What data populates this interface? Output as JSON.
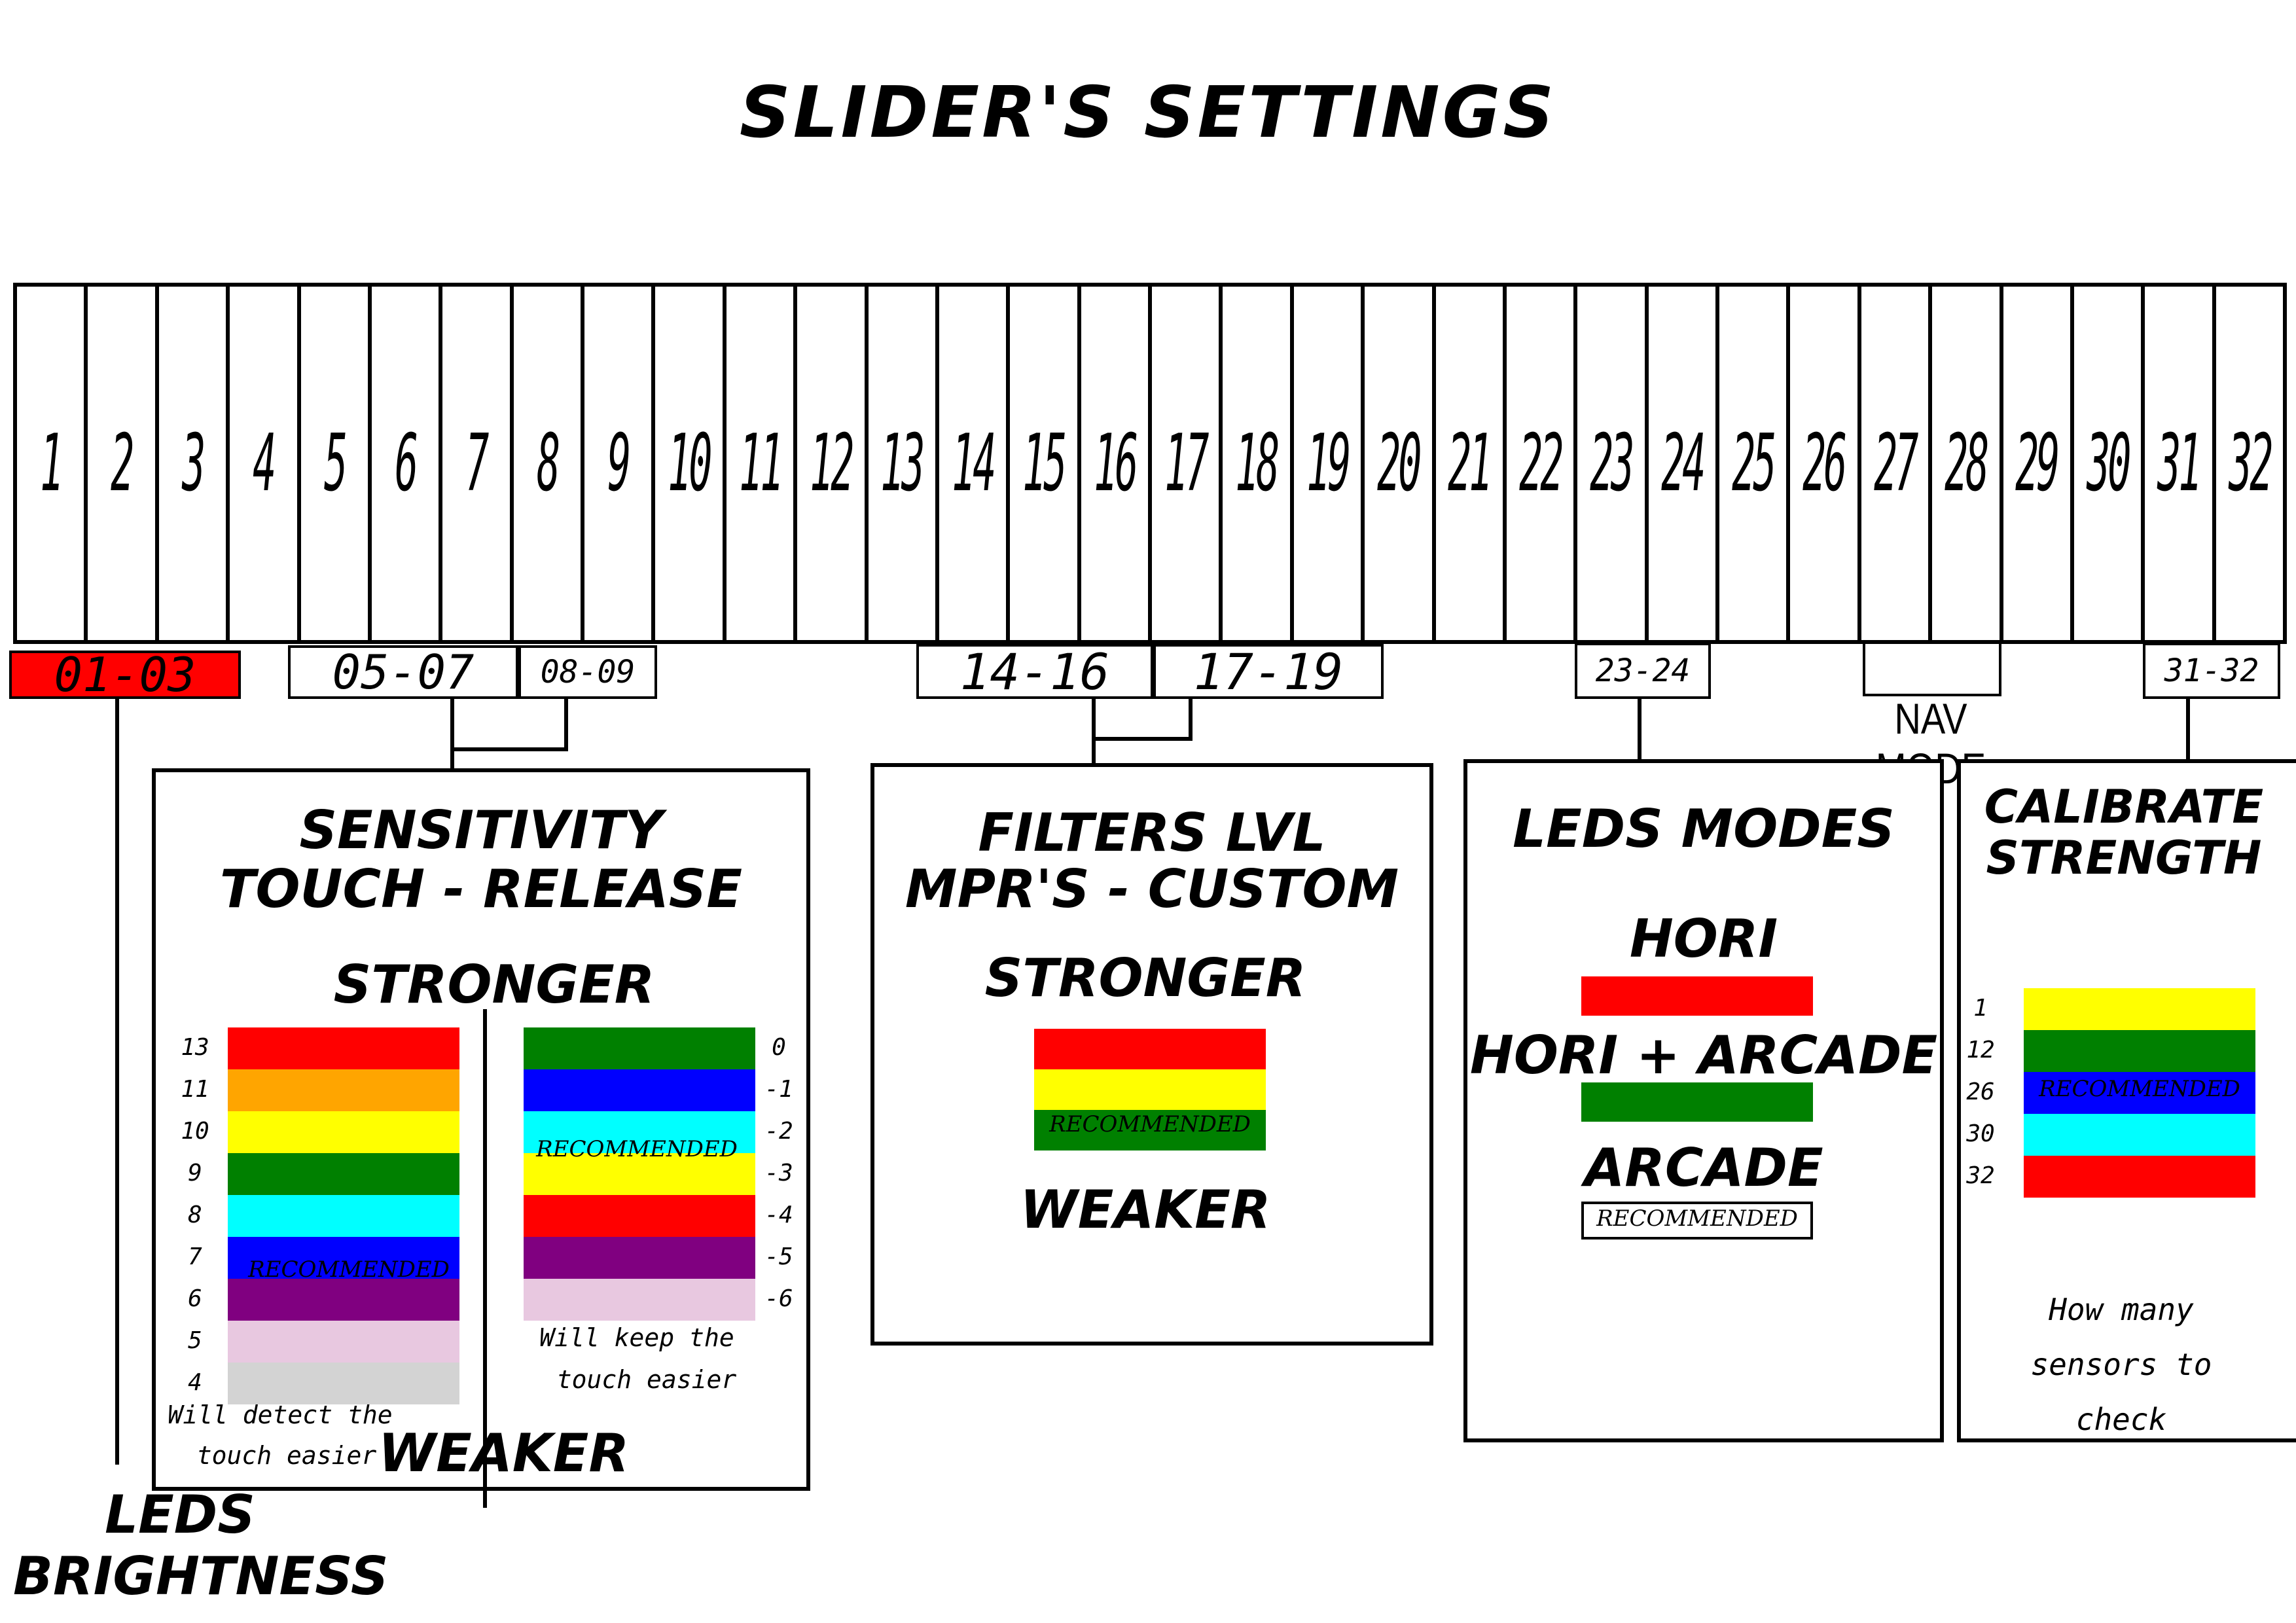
{
  "title": "SLIDER'S SETTINGS",
  "keys": [
    "1",
    "2",
    "3",
    "4",
    "5",
    "6",
    "7",
    "8",
    "9",
    "10",
    "11",
    "12",
    "13",
    "14",
    "15",
    "16",
    "17",
    "18",
    "19",
    "20",
    "21",
    "22",
    "23",
    "24",
    "25",
    "26",
    "27",
    "28",
    "29",
    "30",
    "31",
    "32"
  ],
  "key_labels": {
    "k0103": "01-03",
    "k0507": "05-07",
    "k0809": "08-09",
    "k1416": "14-16",
    "k1719": "17-19",
    "k2324": "23-24",
    "k3132": "31-32",
    "nav_mode": "NAV MODE"
  },
  "leds_brightness": {
    "line1": "LEDS",
    "line2": "BRIGHTNESS"
  },
  "sensitivity": {
    "title1": "SENSITIVITY",
    "title2": "TOUCH - RELEASE",
    "stronger": "STRONGER",
    "weaker": "WEAKER",
    "left_values": [
      "13",
      "11",
      "10",
      "9",
      "8",
      "7",
      "6",
      "5",
      "4"
    ],
    "left_colors": [
      "#ff0000",
      "#ffa500",
      "#ffff00",
      "#008000",
      "#00ffff",
      "#0000ff",
      "#800080",
      "#e8c8e0",
      "#d3d3d3"
    ],
    "left_recommended": "RECOMMENDED",
    "left_note1": "Will detect the",
    "left_note2": "touch easier",
    "right_values": [
      "0",
      "-1",
      "-2",
      "-3",
      "-4",
      "-5",
      "-6"
    ],
    "right_colors": [
      "#008000",
      "#0000ff",
      "#00ffff",
      "#ffff00",
      "#ff0000",
      "#800080",
      "#e8c8e0"
    ],
    "right_recommended": "RECOMMENDED",
    "right_note1": "Will keep the",
    "right_note2": "touch easier"
  },
  "filters": {
    "title1": "FILTERS LVL",
    "title2": "MPR'S - CUSTOM",
    "stronger": "STRONGER",
    "weaker": "WEAKER",
    "colors": [
      "#ff0000",
      "#ffff00",
      "#008000"
    ],
    "recommended": "RECOMMENDED"
  },
  "leds_modes": {
    "title": "LEDS MODES",
    "hori": "HORI",
    "hori_color": "#ff0000",
    "hori_arcade": "HORI + ARCADE",
    "hori_arcade_color": "#008000",
    "arcade": "ARCADE",
    "arcade_color": "#ffffff",
    "recommended": "RECOMMENDED"
  },
  "calibrate": {
    "title1": "CALIBRATE",
    "title2": "STRENGTH",
    "values": [
      "1",
      "12",
      "26",
      "30",
      "32"
    ],
    "colors": [
      "#ffff00",
      "#008000",
      "#0000ff",
      "#00ffff",
      "#ff0000"
    ],
    "recommended": "RECOMMENDED",
    "note1": "How many",
    "note2": "sensors to",
    "note3": "check"
  }
}
